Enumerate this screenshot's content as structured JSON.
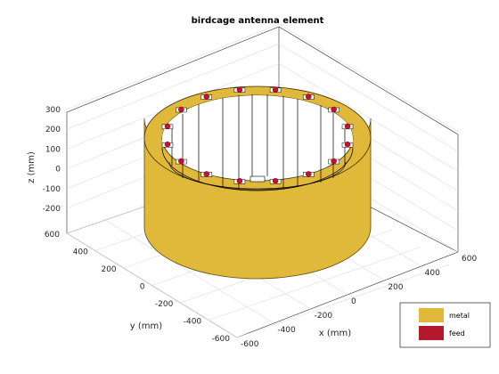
{
  "chart_data": {
    "type": "3d-surface",
    "title": "birdcage antenna element",
    "xlabel": "x (mm)",
    "ylabel": "y (mm)",
    "zlabel": "z (mm)",
    "xlim": [
      -600,
      600
    ],
    "ylim": [
      -600,
      600
    ],
    "zlim": [
      -300,
      300
    ],
    "x_ticks": [
      "-600",
      "-400",
      "-200",
      "0",
      "200",
      "400",
      "600"
    ],
    "y_ticks": [
      "-600",
      "-400",
      "-200",
      "0",
      "200",
      "400",
      "600"
    ],
    "z_ticks": [
      "300",
      "200",
      "100",
      "0",
      "-100",
      "-200"
    ],
    "grid": true,
    "legend": {
      "location": "bottom-right",
      "entries": [
        {
          "label": "metal",
          "color": "#e0b83a"
        },
        {
          "label": "feed",
          "color": "#b3182d"
        }
      ]
    },
    "series": [
      {
        "name": "metal",
        "shape": "cylinder",
        "outer_radius_mm": 500,
        "inner_radius_mm": 420,
        "z_range_mm": [
          -250,
          250
        ]
      },
      {
        "name": "feed",
        "shape": "points",
        "count": 16
      }
    ],
    "colors": {
      "metal": "#e0b83a",
      "feed": "#b3182d",
      "feed_point": "#c8102e"
    }
  }
}
